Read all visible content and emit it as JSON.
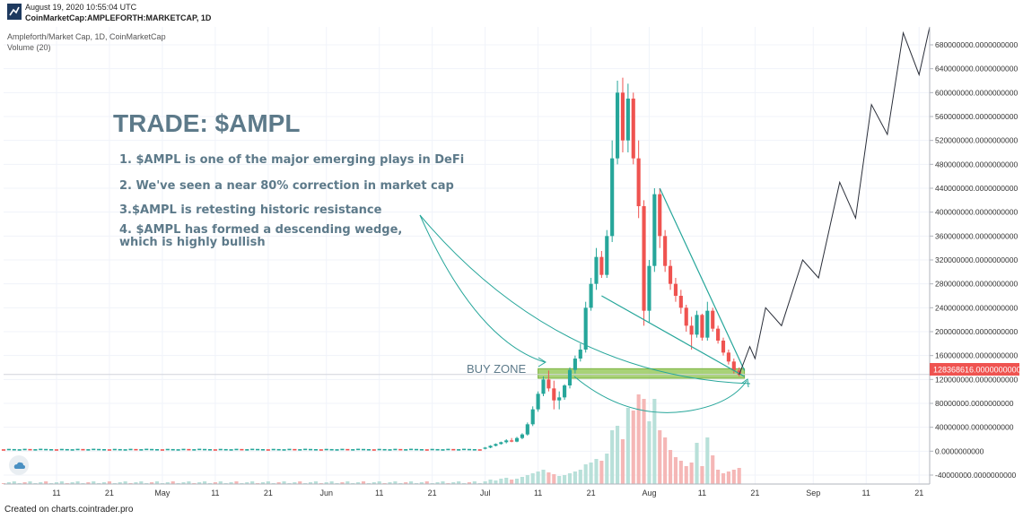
{
  "header": {
    "date": "August 19, 2020 10:55:04 UTC",
    "symbol": "CoinMarketCap:AMPLEFORTH:MARKETCAP, 1D"
  },
  "legend": {
    "title": "Ampleforth/Market Cap, 1D, CoinMarketCap",
    "volume": "Volume (20)"
  },
  "footer": {
    "credit": "Created on charts.cointrader.pro"
  },
  "colors": {
    "up": "#26a69a",
    "down": "#ef5350",
    "annotation": "#5d7a8a",
    "zone": "#8bc34a",
    "price_badge": "#ef5350"
  },
  "annotations": {
    "headline": "TRADE: $AMPL",
    "points": [
      "1. $AMPL is one of the major emerging plays in DeFi",
      "2. We've seen a near 80% correction in market cap",
      "3.$AMPL is retesting historic resistance",
      "4. $AMPL has formed a descending wedge,",
      "which is highly bullish"
    ],
    "buy_zone": "BUY ZONE"
  },
  "chart_data": {
    "type": "candlestick",
    "y_ticks": [
      "680000000.0000000000",
      "640000000.0000000000",
      "600000000.0000000000",
      "560000000.0000000000",
      "520000000.0000000000",
      "480000000.0000000000",
      "440000000.0000000000",
      "400000000.0000000000",
      "360000000.0000000000",
      "320000000.0000000000",
      "280000000.0000000000",
      "240000000.0000000000",
      "200000000.0000000000",
      "160000000.0000000000",
      "120000000.0000000000",
      "80000000.0000000000",
      "40000000.0000000000",
      "0.0000000000",
      "-40000000.0000000000"
    ],
    "ylim": [
      -55000000,
      710000000
    ],
    "current_price": 128368616,
    "current_price_label": "128368616.0000000000",
    "x_ticks": [
      "11",
      "21",
      "May",
      "11",
      "21",
      "Jun",
      "11",
      "21",
      "Jul",
      "11",
      "21",
      "Aug",
      "11",
      "21",
      "Sep",
      "11",
      "21"
    ],
    "x_tick_days": [
      10,
      20,
      30,
      40,
      50,
      61,
      71,
      81,
      91,
      101,
      111,
      122,
      132,
      142,
      153,
      163,
      173
    ],
    "x_axis_start": "2020-04-01",
    "candles_pre_jul": {
      "days": [
        0,
        90
      ],
      "value_approx": 2500000
    },
    "candles": [
      {
        "day": 91,
        "o": 4000000,
        "h": 7000000,
        "l": 3000000,
        "c": 6000000
      },
      {
        "day": 92,
        "o": 6000000,
        "h": 10000000,
        "l": 5000000,
        "c": 9000000
      },
      {
        "day": 93,
        "o": 9000000,
        "h": 13000000,
        "l": 8000000,
        "c": 12000000
      },
      {
        "day": 94,
        "o": 12000000,
        "h": 16000000,
        "l": 11000000,
        "c": 15000000
      },
      {
        "day": 95,
        "o": 15000000,
        "h": 20000000,
        "l": 13000000,
        "c": 18000000
      },
      {
        "day": 96,
        "o": 18000000,
        "h": 22000000,
        "l": 15000000,
        "c": 16000000
      },
      {
        "day": 97,
        "o": 16000000,
        "h": 24000000,
        "l": 15000000,
        "c": 22000000
      },
      {
        "day": 98,
        "o": 22000000,
        "h": 30000000,
        "l": 20000000,
        "c": 28000000
      },
      {
        "day": 99,
        "o": 28000000,
        "h": 48000000,
        "l": 26000000,
        "c": 45000000
      },
      {
        "day": 100,
        "o": 45000000,
        "h": 75000000,
        "l": 42000000,
        "c": 70000000
      },
      {
        "day": 101,
        "o": 70000000,
        "h": 100000000,
        "l": 66000000,
        "c": 96000000
      },
      {
        "day": 102,
        "o": 96000000,
        "h": 125000000,
        "l": 92000000,
        "c": 120000000
      },
      {
        "day": 103,
        "o": 120000000,
        "h": 135000000,
        "l": 100000000,
        "c": 105000000
      },
      {
        "day": 104,
        "o": 105000000,
        "h": 118000000,
        "l": 70000000,
        "c": 85000000
      },
      {
        "day": 105,
        "o": 85000000,
        "h": 100000000,
        "l": 70000000,
        "c": 90000000
      },
      {
        "day": 106,
        "o": 90000000,
        "h": 112000000,
        "l": 86000000,
        "c": 110000000
      },
      {
        "day": 107,
        "o": 110000000,
        "h": 140000000,
        "l": 105000000,
        "c": 136000000
      },
      {
        "day": 108,
        "o": 136000000,
        "h": 160000000,
        "l": 130000000,
        "c": 155000000
      },
      {
        "day": 109,
        "o": 155000000,
        "h": 180000000,
        "l": 150000000,
        "c": 170000000
      },
      {
        "day": 110,
        "o": 170000000,
        "h": 250000000,
        "l": 165000000,
        "c": 240000000
      },
      {
        "day": 111,
        "o": 240000000,
        "h": 290000000,
        "l": 235000000,
        "c": 280000000
      },
      {
        "day": 112,
        "o": 280000000,
        "h": 340000000,
        "l": 270000000,
        "c": 325000000
      },
      {
        "day": 113,
        "o": 325000000,
        "h": 335000000,
        "l": 290000000,
        "c": 295000000
      },
      {
        "day": 114,
        "o": 295000000,
        "h": 370000000,
        "l": 290000000,
        "c": 360000000
      },
      {
        "day": 115,
        "o": 360000000,
        "h": 520000000,
        "l": 350000000,
        "c": 490000000
      },
      {
        "day": 116,
        "o": 490000000,
        "h": 620000000,
        "l": 480000000,
        "c": 600000000
      },
      {
        "day": 117,
        "o": 600000000,
        "h": 625000000,
        "l": 500000000,
        "c": 520000000
      },
      {
        "day": 118,
        "o": 520000000,
        "h": 615000000,
        "l": 500000000,
        "c": 590000000
      },
      {
        "day": 119,
        "o": 590000000,
        "h": 600000000,
        "l": 480000000,
        "c": 490000000
      },
      {
        "day": 120,
        "o": 490000000,
        "h": 520000000,
        "l": 390000000,
        "c": 410000000
      },
      {
        "day": 121,
        "o": 410000000,
        "h": 420000000,
        "l": 210000000,
        "c": 235000000
      },
      {
        "day": 122,
        "o": 235000000,
        "h": 320000000,
        "l": 215000000,
        "c": 310000000
      },
      {
        "day": 123,
        "o": 310000000,
        "h": 440000000,
        "l": 300000000,
        "c": 430000000
      },
      {
        "day": 124,
        "o": 430000000,
        "h": 440000000,
        "l": 340000000,
        "c": 360000000
      },
      {
        "day": 125,
        "o": 360000000,
        "h": 370000000,
        "l": 300000000,
        "c": 310000000
      },
      {
        "day": 126,
        "o": 310000000,
        "h": 320000000,
        "l": 270000000,
        "c": 280000000
      },
      {
        "day": 127,
        "o": 280000000,
        "h": 290000000,
        "l": 250000000,
        "c": 260000000
      },
      {
        "day": 128,
        "o": 260000000,
        "h": 270000000,
        "l": 230000000,
        "c": 240000000
      },
      {
        "day": 129,
        "o": 240000000,
        "h": 245000000,
        "l": 200000000,
        "c": 210000000
      },
      {
        "day": 130,
        "o": 210000000,
        "h": 225000000,
        "l": 170000000,
        "c": 195000000
      },
      {
        "day": 131,
        "o": 195000000,
        "h": 235000000,
        "l": 190000000,
        "c": 228000000
      },
      {
        "day": 132,
        "o": 228000000,
        "h": 230000000,
        "l": 185000000,
        "c": 190000000
      },
      {
        "day": 133,
        "o": 190000000,
        "h": 250000000,
        "l": 185000000,
        "c": 235000000
      },
      {
        "day": 134,
        "o": 235000000,
        "h": 240000000,
        "l": 200000000,
        "c": 205000000
      },
      {
        "day": 135,
        "o": 205000000,
        "h": 210000000,
        "l": 180000000,
        "c": 185000000
      },
      {
        "day": 136,
        "o": 185000000,
        "h": 190000000,
        "l": 160000000,
        "c": 165000000
      },
      {
        "day": 137,
        "o": 165000000,
        "h": 170000000,
        "l": 145000000,
        "c": 150000000
      },
      {
        "day": 138,
        "o": 150000000,
        "h": 155000000,
        "l": 130000000,
        "c": 135000000
      },
      {
        "day": 139,
        "o": 135000000,
        "h": 140000000,
        "l": 125000000,
        "c": 128000000
      }
    ],
    "volume_ylim": [
      0,
      100
    ],
    "volume": [
      {
        "day": 91,
        "v": 3,
        "up": true
      },
      {
        "day": 92,
        "v": 5,
        "up": true
      },
      {
        "day": 93,
        "v": 4,
        "up": true
      },
      {
        "day": 94,
        "v": 6,
        "up": true
      },
      {
        "day": 95,
        "v": 7,
        "up": true
      },
      {
        "day": 96,
        "v": 5,
        "up": false
      },
      {
        "day": 97,
        "v": 6,
        "up": true
      },
      {
        "day": 98,
        "v": 8,
        "up": true
      },
      {
        "day": 99,
        "v": 10,
        "up": true
      },
      {
        "day": 100,
        "v": 12,
        "up": true
      },
      {
        "day": 101,
        "v": 14,
        "up": true
      },
      {
        "day": 102,
        "v": 16,
        "up": true
      },
      {
        "day": 103,
        "v": 13,
        "up": false
      },
      {
        "day": 104,
        "v": 11,
        "up": false
      },
      {
        "day": 105,
        "v": 9,
        "up": true
      },
      {
        "day": 106,
        "v": 10,
        "up": true
      },
      {
        "day": 107,
        "v": 12,
        "up": true
      },
      {
        "day": 108,
        "v": 14,
        "up": true
      },
      {
        "day": 109,
        "v": 16,
        "up": true
      },
      {
        "day": 110,
        "v": 22,
        "up": true
      },
      {
        "day": 111,
        "v": 24,
        "up": true
      },
      {
        "day": 112,
        "v": 28,
        "up": true
      },
      {
        "day": 113,
        "v": 26,
        "up": false
      },
      {
        "day": 114,
        "v": 34,
        "up": true
      },
      {
        "day": 115,
        "v": 60,
        "up": true
      },
      {
        "day": 116,
        "v": 65,
        "up": true
      },
      {
        "day": 117,
        "v": 50,
        "up": false
      },
      {
        "day": 118,
        "v": 85,
        "up": true
      },
      {
        "day": 119,
        "v": 82,
        "up": false
      },
      {
        "day": 120,
        "v": 100,
        "up": false
      },
      {
        "day": 121,
        "v": 95,
        "up": false
      },
      {
        "day": 122,
        "v": 70,
        "up": true
      },
      {
        "day": 123,
        "v": 95,
        "up": true
      },
      {
        "day": 124,
        "v": 60,
        "up": false
      },
      {
        "day": 125,
        "v": 52,
        "up": false
      },
      {
        "day": 126,
        "v": 38,
        "up": false
      },
      {
        "day": 127,
        "v": 30,
        "up": false
      },
      {
        "day": 128,
        "v": 26,
        "up": false
      },
      {
        "day": 129,
        "v": 20,
        "up": false
      },
      {
        "day": 130,
        "v": 24,
        "up": false
      },
      {
        "day": 131,
        "v": 46,
        "up": true
      },
      {
        "day": 132,
        "v": 20,
        "up": false
      },
      {
        "day": 133,
        "v": 52,
        "up": true
      },
      {
        "day": 134,
        "v": 32,
        "up": false
      },
      {
        "day": 135,
        "v": 16,
        "up": false
      },
      {
        "day": 136,
        "v": 12,
        "up": false
      },
      {
        "day": 137,
        "v": 14,
        "up": false
      },
      {
        "day": 138,
        "v": 16,
        "up": false
      },
      {
        "day": 139,
        "v": 18,
        "up": false
      }
    ],
    "projection": [
      {
        "day": 139,
        "value": 128000000
      },
      {
        "day": 141,
        "value": 175000000
      },
      {
        "day": 142,
        "value": 155000000
      },
      {
        "day": 144,
        "value": 240000000
      },
      {
        "day": 147,
        "value": 210000000
      },
      {
        "day": 151,
        "value": 320000000
      },
      {
        "day": 154,
        "value": 290000000
      },
      {
        "day": 158,
        "value": 450000000
      },
      {
        "day": 161,
        "value": 390000000
      },
      {
        "day": 164,
        "value": 580000000
      },
      {
        "day": 167,
        "value": 530000000
      },
      {
        "day": 170,
        "value": 700000000
      },
      {
        "day": 173,
        "value": 630000000
      },
      {
        "day": 175,
        "value": 710000000
      }
    ],
    "wedge_upper": [
      {
        "day": 124,
        "value": 440000000
      },
      {
        "day": 140,
        "value": 135000000
      }
    ],
    "wedge_lower": [
      {
        "day": 113,
        "value": 260000000
      },
      {
        "day": 140,
        "value": 125000000
      }
    ],
    "buy_zone": {
      "day_start": 101,
      "day_end": 140,
      "value_low": 122000000,
      "value_high": 138000000
    }
  }
}
